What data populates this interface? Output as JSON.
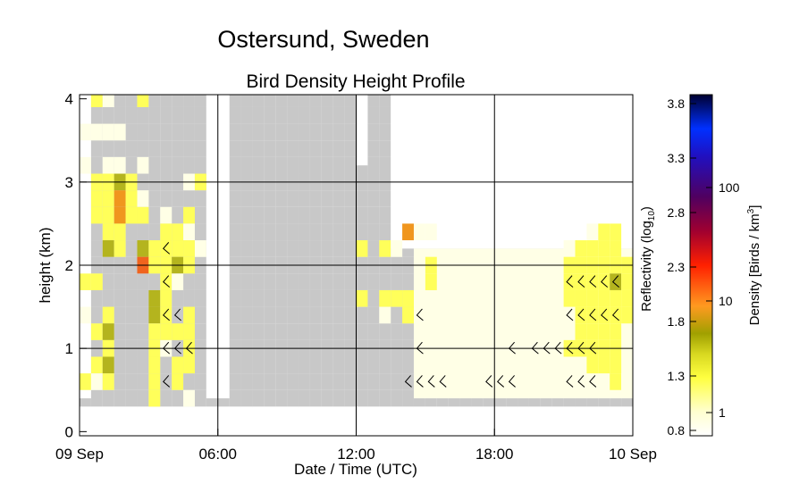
{
  "chart_data": {
    "type": "heatmap",
    "title": "Ostersund, Sweden",
    "subtitle": "Bird Density Height Profile",
    "xlabel": "Date / Time (UTC)",
    "ylabel": "height (km)",
    "x_ticks": [
      "09 Sep",
      "06:00",
      "12:00",
      "18:00",
      "10 Sep"
    ],
    "y_ticks": [
      "0",
      "1",
      "2",
      "3",
      "4"
    ],
    "xlim_hours": [
      0,
      24
    ],
    "ylim_km": [
      -0.05,
      4.05
    ],
    "grid": true,
    "colorbar": {
      "left_label": "Reflectivity (log10)",
      "right_label": "Density [Birds / km3]",
      "left_ticks": [
        "0.8",
        "1.3",
        "1.8",
        "2.3",
        "2.8",
        "3.3",
        "3.8"
      ],
      "right_ticks": [
        "1",
        "10",
        "100"
      ],
      "range_log10": [
        0.8,
        3.8
      ]
    },
    "legend": "colorbar right",
    "cell_size": {
      "hours": 0.5,
      "km": 0.2
    },
    "color_key": {
      "g": "no data (gray)",
      "w": "very low (near white)",
      "c": "low (cream)",
      "y": "moderate (yellow)",
      "o": "olive",
      "r": "orange",
      "R": "red-orange"
    },
    "color_map": {
      "g": "#c8c8c8",
      "w": "#ffffff",
      "c": "#ffffe6",
      "y": "#ffff5a",
      "o": "#b4b41e",
      "r": "#f0961e",
      "R": "#f0641e"
    },
    "grid_rows": [
      {
        "h": 4.0,
        "cols": "gggggyggggggggggggggggggggggggggggggggggggggggggggggggg"
      },
      {
        "h": 3.8,
        "cols": "ggggggggggggggggggggggggggggggggggggggggggggggggggggggg"
      },
      {
        "h": 3.6,
        "cols": "ggggggggggggggggggggggggggggggggggggggggggggggggggggggg"
      },
      {
        "h": 3.4,
        "cols": "ggggggggggggggggggggggggggggggggggggggggggggggggggggggg"
      },
      {
        "h": 3.2,
        "cols": "ggggggggggggggggggggggggggggggggggggggggggggggggggggggg"
      },
      {
        "h": 3.0,
        "cols": "ggggggggggggggggggggggggggggggggggggggggggggggggggggggg"
      },
      {
        "h": 2.8,
        "cols": "ggggggggggggggggggggggggggggggggggggggggggggggggggggggg"
      },
      {
        "h": 2.6,
        "cols": "ggggggggggggggggggggggggggggggggggggggggggggggggggggggg"
      },
      {
        "h": 2.4,
        "cols": "ggggggggggggggggggggggggggggggggggggggggggggggggggggggg"
      },
      {
        "h": 2.2,
        "cols": "ggggggggggggggggggggggggggggggggggggggggggggggggggggggg"
      },
      {
        "h": 2.0,
        "cols": "ggggggggggggggggggggggggggggggggggggggggggggggggggggggg"
      },
      {
        "h": 1.8,
        "cols": "ggggggggggggggggggggggggggggggggggggggggggggggggggggggg"
      },
      {
        "h": 1.6,
        "cols": "ggggggggggggggggggggggggggggggggggggggggggggggggggggggg"
      },
      {
        "h": 1.4,
        "cols": "ggggggggggggggggggggggggggggggggggggggggggggggggggggggg"
      },
      {
        "h": 1.2,
        "cols": "ggggggggggggggggggggggggggggggggggggggggggggggggggggggg"
      },
      {
        "h": 1.0,
        "cols": "ggggggggggggggggggggggggggggggggggggggggggggggggggggggg"
      },
      {
        "h": 0.8,
        "cols": "ggggggggggggggggggggggggggggggggggggggggggggggggggggggg"
      },
      {
        "h": 0.6,
        "cols": "ggggggggggggggggggggggggggggggggggggggggggggggggggggggg"
      },
      {
        "h": 0.4,
        "cols": "ggggggggggggggggggggggggggggggggggggggggggggggggggggggg"
      }
    ],
    "overlay_cells": [
      {
        "t": 0.5,
        "h": 4.0,
        "c": "y"
      },
      {
        "t": 1.0,
        "h": 4.0,
        "c": "c"
      },
      {
        "t": 0.0,
        "h": 3.6,
        "c": "c"
      },
      {
        "t": 0.5,
        "h": 3.6,
        "c": "c"
      },
      {
        "t": 1.0,
        "h": 3.6,
        "c": "c"
      },
      {
        "t": 1.5,
        "h": 3.6,
        "c": "c"
      },
      {
        "t": 0.0,
        "h": 3.2,
        "c": "c"
      },
      {
        "t": 1.0,
        "h": 3.2,
        "c": "c"
      },
      {
        "t": 1.5,
        "h": 3.2,
        "c": "c"
      },
      {
        "t": 2.5,
        "h": 3.2,
        "c": "c"
      },
      {
        "t": 0.5,
        "h": 3.0,
        "c": "y"
      },
      {
        "t": 1.0,
        "h": 3.0,
        "c": "y"
      },
      {
        "t": 1.5,
        "h": 3.0,
        "c": "o"
      },
      {
        "t": 2.0,
        "h": 3.0,
        "c": "y"
      },
      {
        "t": 4.5,
        "h": 3.0,
        "c": "c"
      },
      {
        "t": 5.0,
        "h": 3.0,
        "c": "y"
      },
      {
        "t": 0.5,
        "h": 2.8,
        "c": "y"
      },
      {
        "t": 1.0,
        "h": 2.8,
        "c": "y"
      },
      {
        "t": 1.5,
        "h": 2.8,
        "c": "r"
      },
      {
        "t": 2.0,
        "h": 2.8,
        "c": "y"
      },
      {
        "t": 2.5,
        "h": 2.8,
        "c": "c"
      },
      {
        "t": 0.5,
        "h": 2.6,
        "c": "y"
      },
      {
        "t": 1.0,
        "h": 2.6,
        "c": "y"
      },
      {
        "t": 1.5,
        "h": 2.6,
        "c": "r"
      },
      {
        "t": 2.0,
        "h": 2.6,
        "c": "y"
      },
      {
        "t": 2.5,
        "h": 2.6,
        "c": "y"
      },
      {
        "t": 3.5,
        "h": 2.6,
        "c": "c"
      },
      {
        "t": 4.5,
        "h": 2.6,
        "c": "y"
      },
      {
        "t": 1.0,
        "h": 2.4,
        "c": "y"
      },
      {
        "t": 1.5,
        "h": 2.4,
        "c": "y"
      },
      {
        "t": 3.5,
        "h": 2.4,
        "c": "y"
      },
      {
        "t": 4.0,
        "h": 2.4,
        "c": "y"
      },
      {
        "t": 4.5,
        "h": 2.4,
        "c": "c"
      },
      {
        "t": 14.0,
        "h": 2.4,
        "c": "r"
      },
      {
        "t": 14.5,
        "h": 2.4,
        "c": "c"
      },
      {
        "t": 15.0,
        "h": 2.4,
        "c": "c"
      },
      {
        "t": 22.0,
        "h": 2.4,
        "c": "c"
      },
      {
        "t": 22.5,
        "h": 2.4,
        "c": "y"
      },
      {
        "t": 23.0,
        "h": 2.4,
        "c": "y"
      },
      {
        "t": 1.0,
        "h": 2.2,
        "c": "o"
      },
      {
        "t": 1.5,
        "h": 2.2,
        "c": "y"
      },
      {
        "t": 2.5,
        "h": 2.2,
        "c": "o"
      },
      {
        "t": 3.0,
        "h": 2.2,
        "c": "y"
      },
      {
        "t": 3.5,
        "h": 2.2,
        "c": "y"
      },
      {
        "t": 4.0,
        "h": 2.2,
        "c": "y"
      },
      {
        "t": 4.5,
        "h": 2.2,
        "c": "y"
      },
      {
        "t": 5.0,
        "h": 2.2,
        "c": "c"
      },
      {
        "t": 12.0,
        "h": 2.2,
        "c": "y"
      },
      {
        "t": 13.0,
        "h": 2.2,
        "c": "y"
      },
      {
        "t": 13.5,
        "h": 2.2,
        "c": "c"
      },
      {
        "t": 21.0,
        "h": 2.2,
        "c": "c"
      },
      {
        "t": 21.5,
        "h": 2.2,
        "c": "y"
      },
      {
        "t": 22.0,
        "h": 2.2,
        "c": "y"
      },
      {
        "t": 22.5,
        "h": 2.2,
        "c": "y"
      },
      {
        "t": 23.0,
        "h": 2.2,
        "c": "y"
      },
      {
        "t": 2.5,
        "h": 2.0,
        "c": "R"
      },
      {
        "t": 3.0,
        "h": 2.0,
        "c": "y"
      },
      {
        "t": 3.5,
        "h": 2.0,
        "c": "y"
      },
      {
        "t": 4.0,
        "h": 2.0,
        "c": "o"
      },
      {
        "t": 4.5,
        "h": 2.0,
        "c": "y"
      },
      {
        "t": 14.5,
        "h": 2.0,
        "c": "c"
      },
      {
        "t": 15.0,
        "h": 2.0,
        "c": "y"
      },
      {
        "t": 21.0,
        "h": 2.0,
        "c": "y"
      },
      {
        "t": 21.5,
        "h": 2.0,
        "c": "y"
      },
      {
        "t": 22.0,
        "h": 2.0,
        "c": "y"
      },
      {
        "t": 22.5,
        "h": 2.0,
        "c": "y"
      },
      {
        "t": 23.0,
        "h": 2.0,
        "c": "y"
      },
      {
        "t": 23.5,
        "h": 2.0,
        "c": "y"
      },
      {
        "t": 0.0,
        "h": 1.8,
        "c": "y"
      },
      {
        "t": 0.5,
        "h": 1.8,
        "c": "y"
      },
      {
        "t": 3.5,
        "h": 1.8,
        "c": "y"
      },
      {
        "t": 4.0,
        "h": 1.8,
        "c": "c"
      },
      {
        "t": 14.5,
        "h": 1.8,
        "c": "c"
      },
      {
        "t": 15.0,
        "h": 1.8,
        "c": "y"
      },
      {
        "t": 21.0,
        "h": 1.8,
        "c": "y"
      },
      {
        "t": 21.5,
        "h": 1.8,
        "c": "y"
      },
      {
        "t": 22.0,
        "h": 1.8,
        "c": "y"
      },
      {
        "t": 22.5,
        "h": 1.8,
        "c": "y"
      },
      {
        "t": 23.0,
        "h": 1.8,
        "c": "o"
      },
      {
        "t": 23.5,
        "h": 1.8,
        "c": "y"
      },
      {
        "t": 3.0,
        "h": 1.6,
        "c": "o"
      },
      {
        "t": 3.5,
        "h": 1.6,
        "c": "y"
      },
      {
        "t": 12.0,
        "h": 1.6,
        "c": "y"
      },
      {
        "t": 13.0,
        "h": 1.6,
        "c": "y"
      },
      {
        "t": 13.5,
        "h": 1.6,
        "c": "y"
      },
      {
        "t": 14.0,
        "h": 1.6,
        "c": "y"
      },
      {
        "t": 21.0,
        "h": 1.6,
        "c": "y"
      },
      {
        "t": 21.5,
        "h": 1.6,
        "c": "y"
      },
      {
        "t": 22.0,
        "h": 1.6,
        "c": "y"
      },
      {
        "t": 22.5,
        "h": 1.6,
        "c": "y"
      },
      {
        "t": 23.0,
        "h": 1.6,
        "c": "y"
      },
      {
        "t": 23.5,
        "h": 1.6,
        "c": "y"
      },
      {
        "t": 0.0,
        "h": 1.4,
        "c": "c"
      },
      {
        "t": 1.0,
        "h": 1.4,
        "c": "y"
      },
      {
        "t": 3.0,
        "h": 1.4,
        "c": "o"
      },
      {
        "t": 3.5,
        "h": 1.4,
        "c": "y"
      },
      {
        "t": 4.5,
        "h": 1.4,
        "c": "y"
      },
      {
        "t": 13.0,
        "h": 1.4,
        "c": "c"
      },
      {
        "t": 14.0,
        "h": 1.4,
        "c": "y"
      },
      {
        "t": 21.5,
        "h": 1.4,
        "c": "y"
      },
      {
        "t": 22.0,
        "h": 1.4,
        "c": "y"
      },
      {
        "t": 22.5,
        "h": 1.4,
        "c": "y"
      },
      {
        "t": 23.0,
        "h": 1.4,
        "c": "y"
      },
      {
        "t": 23.5,
        "h": 1.4,
        "c": "y"
      },
      {
        "t": 0.5,
        "h": 1.2,
        "c": "y"
      },
      {
        "t": 1.0,
        "h": 1.2,
        "c": "o"
      },
      {
        "t": 3.0,
        "h": 1.2,
        "c": "y"
      },
      {
        "t": 3.5,
        "h": 1.2,
        "c": "y"
      },
      {
        "t": 4.0,
        "h": 1.2,
        "c": "y"
      },
      {
        "t": 4.5,
        "h": 1.2,
        "c": "y"
      },
      {
        "t": 21.5,
        "h": 1.2,
        "c": "y"
      },
      {
        "t": 22.0,
        "h": 1.2,
        "c": "y"
      },
      {
        "t": 22.5,
        "h": 1.2,
        "c": "y"
      },
      {
        "t": 23.0,
        "h": 1.2,
        "c": "y"
      },
      {
        "t": 1.0,
        "h": 1.0,
        "c": "y"
      },
      {
        "t": 3.0,
        "h": 1.0,
        "c": "y"
      },
      {
        "t": 3.5,
        "h": 1.0,
        "c": "c"
      },
      {
        "t": 4.5,
        "h": 1.0,
        "c": "y"
      },
      {
        "t": 21.0,
        "h": 1.0,
        "c": "y"
      },
      {
        "t": 21.5,
        "h": 1.0,
        "c": "y"
      },
      {
        "t": 22.0,
        "h": 1.0,
        "c": "y"
      },
      {
        "t": 22.5,
        "h": 1.0,
        "c": "y"
      },
      {
        "t": 23.0,
        "h": 1.0,
        "c": "y"
      },
      {
        "t": 0.5,
        "h": 0.8,
        "c": "y"
      },
      {
        "t": 1.0,
        "h": 0.8,
        "c": "o"
      },
      {
        "t": 3.0,
        "h": 0.8,
        "c": "y"
      },
      {
        "t": 4.0,
        "h": 0.8,
        "c": "y"
      },
      {
        "t": 4.5,
        "h": 0.8,
        "c": "y"
      },
      {
        "t": 22.0,
        "h": 0.8,
        "c": "y"
      },
      {
        "t": 22.5,
        "h": 0.8,
        "c": "y"
      },
      {
        "t": 23.0,
        "h": 0.8,
        "c": "y"
      },
      {
        "t": 0.0,
        "h": 0.6,
        "c": "y"
      },
      {
        "t": 0.5,
        "h": 0.6,
        "c": "c"
      },
      {
        "t": 1.0,
        "h": 0.6,
        "c": "y"
      },
      {
        "t": 3.0,
        "h": 0.6,
        "c": "y"
      },
      {
        "t": 4.0,
        "h": 0.6,
        "c": "y"
      },
      {
        "t": 23.0,
        "h": 0.6,
        "c": "y"
      },
      {
        "t": 23.5,
        "h": 0.6,
        "c": "c"
      },
      {
        "t": 3.0,
        "h": 0.4,
        "c": "y"
      },
      {
        "t": 4.5,
        "h": 0.4,
        "c": "c"
      }
    ],
    "cream_region": {
      "t_from": 14.5,
      "t_to": 24.0,
      "h_from": 0.4,
      "h_to": 2.2,
      "c": "c"
    },
    "white_columns": [
      {
        "t_from": 0.0,
        "t_to": 0.5,
        "h_from": 4.1,
        "h_to": 0.4
      },
      {
        "t_from": 5.5,
        "t_to": 6.5,
        "h_from": 4.1,
        "h_to": 0.4
      },
      {
        "t_from": 12.0,
        "t_to": 12.5,
        "h_from": 4.1,
        "h_to": 3.2
      },
      {
        "t_from": 13.5,
        "t_to": 24.0,
        "h_from": 4.1,
        "h_to": 2.2
      }
    ],
    "wind_barbs": [
      {
        "t": 3.5,
        "h": 2.2
      },
      {
        "t": 3.5,
        "h": 1.8
      },
      {
        "t": 3.5,
        "h": 1.4
      },
      {
        "t": 4.0,
        "h": 1.4
      },
      {
        "t": 3.5,
        "h": 1.0
      },
      {
        "t": 4.0,
        "h": 1.0
      },
      {
        "t": 4.5,
        "h": 1.0
      },
      {
        "t": 3.5,
        "h": 0.6
      },
      {
        "t": 14.5,
        "h": 1.4
      },
      {
        "t": 14.5,
        "h": 1.0
      },
      {
        "t": 14.0,
        "h": 0.6
      },
      {
        "t": 14.5,
        "h": 0.6
      },
      {
        "t": 15.0,
        "h": 0.6
      },
      {
        "t": 15.5,
        "h": 0.6
      },
      {
        "t": 17.5,
        "h": 0.6
      },
      {
        "t": 18.0,
        "h": 0.6
      },
      {
        "t": 18.5,
        "h": 0.6
      },
      {
        "t": 18.5,
        "h": 1.0
      },
      {
        "t": 19.5,
        "h": 1.0
      },
      {
        "t": 20.0,
        "h": 1.0
      },
      {
        "t": 20.5,
        "h": 1.0
      },
      {
        "t": 21.0,
        "h": 1.0
      },
      {
        "t": 21.5,
        "h": 1.0
      },
      {
        "t": 22.0,
        "h": 1.0
      },
      {
        "t": 21.0,
        "h": 0.6
      },
      {
        "t": 21.5,
        "h": 0.6
      },
      {
        "t": 22.0,
        "h": 0.6
      },
      {
        "t": 21.0,
        "h": 1.4
      },
      {
        "t": 21.5,
        "h": 1.4
      },
      {
        "t": 22.0,
        "h": 1.4
      },
      {
        "t": 22.5,
        "h": 1.4
      },
      {
        "t": 23.0,
        "h": 1.4
      },
      {
        "t": 21.0,
        "h": 1.8
      },
      {
        "t": 21.5,
        "h": 1.8
      },
      {
        "t": 22.0,
        "h": 1.8
      },
      {
        "t": 22.5,
        "h": 1.8
      },
      {
        "t": 23.0,
        "h": 1.8
      }
    ]
  }
}
